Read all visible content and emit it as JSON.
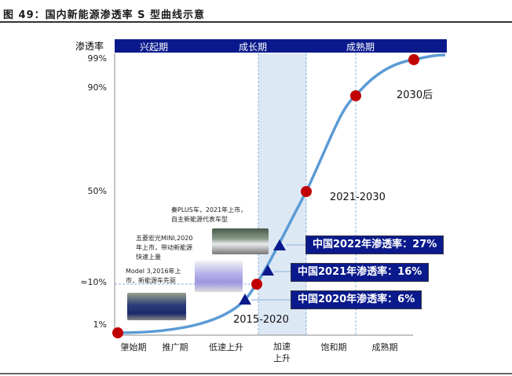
{
  "title": "图 49：国内新能源渗透率 S 型曲线示意",
  "y_axis_title": "渗透率",
  "phases": [
    "兴起期",
    "成长期",
    "成熟期"
  ],
  "y_ticks": [
    "99%",
    "90%",
    "50%",
    "≈10%",
    "1%"
  ],
  "x_stages": [
    "肇始期",
    "推广期",
    "低速上升",
    "加速上升",
    "饱和期",
    "成熟期"
  ],
  "period_labels": {
    "early": "2015-2020",
    "mid": "2021-2030",
    "late": "2030后"
  },
  "callouts": [
    "中国2022年渗透率：27%",
    "中国2021年渗透率：16%",
    "中国2020年渗透率：6%"
  ],
  "captions": {
    "qin": [
      "秦PLUS车，2021年上市，",
      "自主新能源代表车型"
    ],
    "wuling": [
      "五菱宏光MINI,2020",
      "年上市，带动新能源",
      "快速上量"
    ],
    "model3": [
      "Model 3,2016年上",
      "市，新能源车先驱"
    ]
  },
  "colors": {
    "navy": "#0a1a8c",
    "curve": "#5b9bd5",
    "dot": "#c00000",
    "band": "#dde8f5"
  }
}
